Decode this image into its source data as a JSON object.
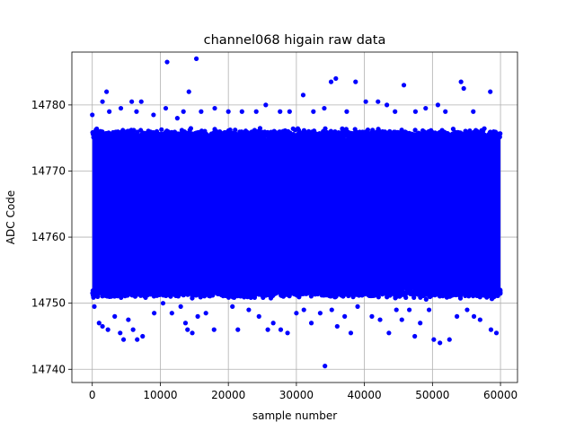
{
  "chart_data": {
    "type": "scatter",
    "title": "channel068 higain raw data",
    "xlabel": "sample number",
    "ylabel": "ADC Code",
    "xlim": [
      -3000,
      62500
    ],
    "ylim": [
      14738,
      14788
    ],
    "xticks": [
      0,
      10000,
      20000,
      30000,
      40000,
      50000,
      60000
    ],
    "xtick_labels": [
      "0",
      "10000",
      "20000",
      "30000",
      "40000",
      "50000",
      "60000"
    ],
    "yticks": [
      14740,
      14750,
      14760,
      14770,
      14780
    ],
    "ytick_labels": [
      "14740",
      "14750",
      "14760",
      "14770",
      "14780"
    ],
    "grid": true,
    "marker_color": "#0000ff",
    "dense_band": {
      "x_range": [
        0,
        60000
      ],
      "y_range": [
        14752,
        14775
      ]
    },
    "outliers": [
      [
        0,
        14778.5
      ],
      [
        1500,
        14780.5
      ],
      [
        2100,
        14782
      ],
      [
        2500,
        14779
      ],
      [
        4200,
        14779.5
      ],
      [
        5800,
        14780.5
      ],
      [
        6500,
        14779
      ],
      [
        7200,
        14780.5
      ],
      [
        9000,
        14778.5
      ],
      [
        10800,
        14779.5
      ],
      [
        11000,
        14786.5
      ],
      [
        12500,
        14778
      ],
      [
        13400,
        14779
      ],
      [
        14200,
        14782
      ],
      [
        15300,
        14787
      ],
      [
        16000,
        14779
      ],
      [
        18000,
        14779.5
      ],
      [
        20000,
        14779
      ],
      [
        22000,
        14779
      ],
      [
        24100,
        14779
      ],
      [
        25500,
        14780
      ],
      [
        27600,
        14779
      ],
      [
        29000,
        14779
      ],
      [
        31000,
        14781.5
      ],
      [
        32500,
        14779
      ],
      [
        34100,
        14779.5
      ],
      [
        35100,
        14783.5
      ],
      [
        35800,
        14784
      ],
      [
        37400,
        14779
      ],
      [
        38700,
        14783.5
      ],
      [
        40200,
        14780.5
      ],
      [
        42000,
        14780.5
      ],
      [
        43300,
        14780
      ],
      [
        44500,
        14779
      ],
      [
        45800,
        14783
      ],
      [
        47500,
        14779
      ],
      [
        49000,
        14779.5
      ],
      [
        50800,
        14780
      ],
      [
        51900,
        14779
      ],
      [
        54200,
        14783.5
      ],
      [
        54600,
        14782.5
      ],
      [
        56000,
        14779
      ],
      [
        58500,
        14782
      ],
      [
        300,
        14749.5
      ],
      [
        1000,
        14747
      ],
      [
        1500,
        14746.5
      ],
      [
        2300,
        14746
      ],
      [
        3300,
        14748
      ],
      [
        4100,
        14745.5
      ],
      [
        4600,
        14744.5
      ],
      [
        5300,
        14747.5
      ],
      [
        6000,
        14746
      ],
      [
        6600,
        14744.5
      ],
      [
        7400,
        14745
      ],
      [
        9100,
        14748.5
      ],
      [
        10400,
        14750
      ],
      [
        11700,
        14748.5
      ],
      [
        13000,
        14749.5
      ],
      [
        13700,
        14747
      ],
      [
        14000,
        14746
      ],
      [
        14700,
        14745.5
      ],
      [
        15500,
        14748
      ],
      [
        16700,
        14748.5
      ],
      [
        17900,
        14746
      ],
      [
        20600,
        14749.5
      ],
      [
        21400,
        14746
      ],
      [
        23000,
        14749
      ],
      [
        24500,
        14748
      ],
      [
        25800,
        14746
      ],
      [
        26600,
        14747
      ],
      [
        27700,
        14746
      ],
      [
        28700,
        14745.5
      ],
      [
        30000,
        14748.5
      ],
      [
        31100,
        14749
      ],
      [
        32200,
        14747
      ],
      [
        33500,
        14748.5
      ],
      [
        34200,
        14740.5
      ],
      [
        35200,
        14749
      ],
      [
        36000,
        14746.5
      ],
      [
        37100,
        14748
      ],
      [
        38000,
        14745.5
      ],
      [
        39000,
        14749.5
      ],
      [
        41100,
        14748
      ],
      [
        42300,
        14747.5
      ],
      [
        43600,
        14745.5
      ],
      [
        44700,
        14749
      ],
      [
        45500,
        14747.5
      ],
      [
        46600,
        14749
      ],
      [
        47400,
        14745
      ],
      [
        48200,
        14747
      ],
      [
        49500,
        14749
      ],
      [
        50200,
        14744.5
      ],
      [
        51100,
        14744
      ],
      [
        52500,
        14744.5
      ],
      [
        53600,
        14748
      ],
      [
        55100,
        14749
      ],
      [
        56100,
        14748
      ],
      [
        57000,
        14747.5
      ],
      [
        58600,
        14746
      ],
      [
        59400,
        14745.5
      ]
    ]
  }
}
